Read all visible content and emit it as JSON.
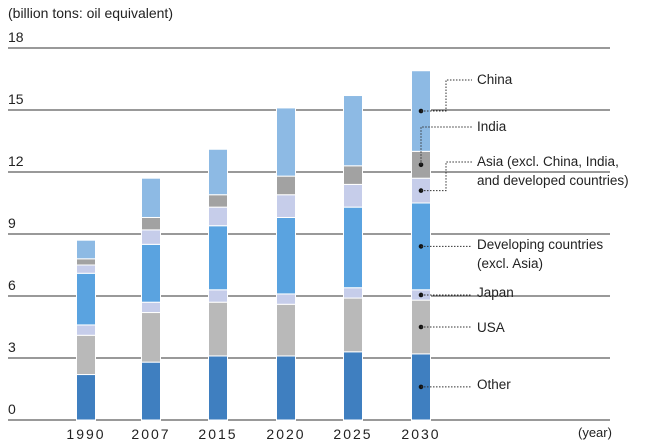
{
  "chart_data": {
    "type": "stacked_bar",
    "y_axis_label": "(billion tons: oil equivalent)",
    "x_axis_label": "(year)",
    "categories": [
      "1990",
      "2007",
      "2015",
      "2020",
      "2025",
      "2030"
    ],
    "ylim": [
      0,
      18
    ],
    "yticks": [
      0,
      3,
      6,
      9,
      12,
      15,
      18
    ],
    "grid": true,
    "series": [
      {
        "name": "Other",
        "color": "#3f7fc0",
        "values": [
          2.2,
          2.8,
          3.1,
          3.1,
          3.3,
          3.2
        ]
      },
      {
        "name": "USA",
        "color": "#b9b9b9",
        "values": [
          1.9,
          2.4,
          2.6,
          2.5,
          2.6,
          2.6
        ]
      },
      {
        "name": "Japan",
        "color": "#c6cdea",
        "values": [
          0.5,
          0.5,
          0.6,
          0.5,
          0.5,
          0.5
        ]
      },
      {
        "name": "Developing countries\n(excl. Asia)",
        "color": "#5aa3e0",
        "values": [
          2.5,
          2.8,
          3.1,
          3.7,
          3.9,
          4.2
        ]
      },
      {
        "name": "Asia (excl. China, India,\nand developed countries)",
        "color": "#c6cdea",
        "values": [
          0.4,
          0.7,
          0.9,
          1.1,
          1.1,
          1.2
        ]
      },
      {
        "name": "India",
        "color": "#a2a2a2",
        "values": [
          0.3,
          0.6,
          0.6,
          0.9,
          0.9,
          1.3
        ]
      },
      {
        "name": "China",
        "color": "#8dbae4",
        "values": [
          0.9,
          1.9,
          2.2,
          3.3,
          3.4,
          3.9
        ]
      }
    ]
  }
}
